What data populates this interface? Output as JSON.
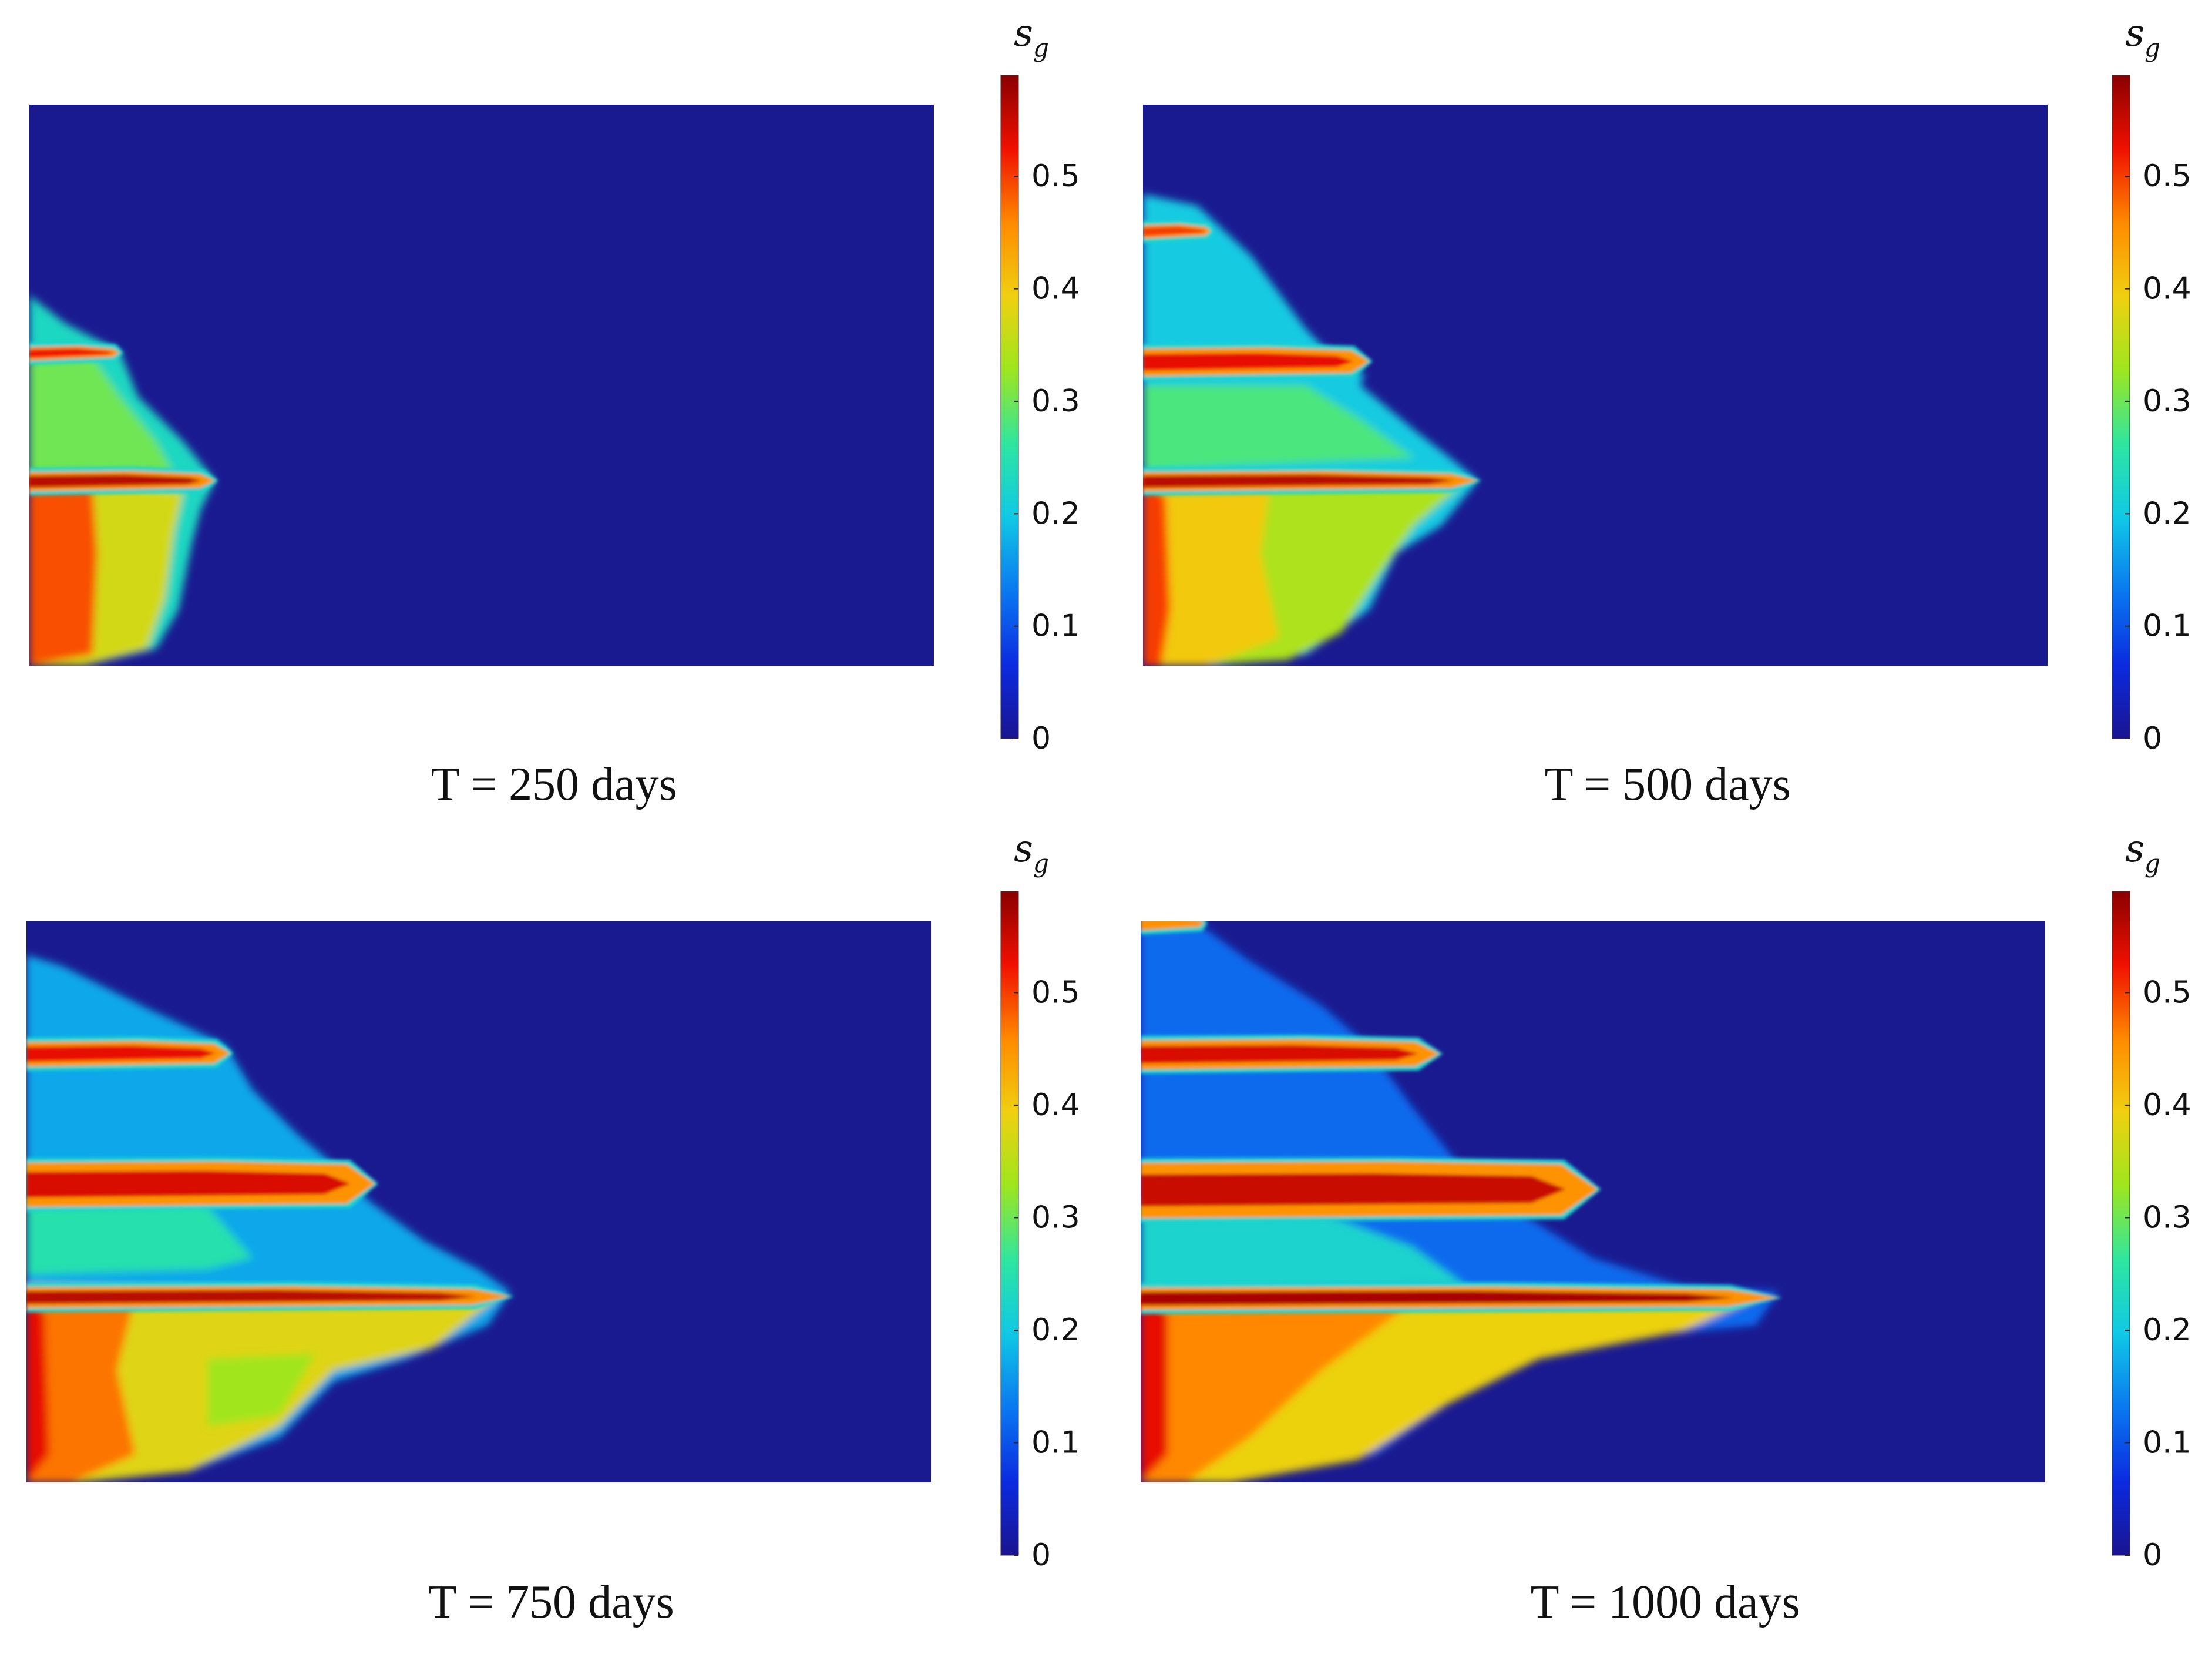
{
  "figure": {
    "colormap": [
      "#1a1490",
      "#0b2ae0",
      "#0a78f0",
      "#10c8e6",
      "#2ee6a0",
      "#9ee61e",
      "#f0d010",
      "#ff8a00",
      "#f01000",
      "#8a0000"
    ],
    "background_color": "#1a1a90",
    "colorbar_tick_labels": [
      "0",
      "0.1",
      "0.2",
      "0.3",
      "0.4",
      "0.5"
    ],
    "colorbar_title": {
      "main": "s",
      "sub": "g"
    }
  },
  "panels": [
    {
      "caption": "T = 250 days"
    },
    {
      "caption": "T = 500 days"
    },
    {
      "caption": "T = 750 days"
    },
    {
      "caption": "T = 1000 days"
    }
  ],
  "chart_data": [
    {
      "type": "heatmap",
      "title": "T = 250 days",
      "variable": "s_g",
      "colorbar": {
        "min": 0,
        "max": 0.59,
        "ticks": [
          0,
          0.1,
          0.2,
          0.3,
          0.4,
          0.5
        ]
      },
      "plumes": [
        {
          "reach": 0.205,
          "peak_sg": 0.55
        },
        {
          "reach": 0.1,
          "peak_sg": 0.5
        }
      ]
    },
    {
      "type": "heatmap",
      "title": "T = 500 days",
      "variable": "s_g",
      "colorbar": {
        "min": 0,
        "max": 0.59,
        "ticks": [
          0,
          0.1,
          0.2,
          0.3,
          0.4,
          0.5
        ]
      },
      "plumes": [
        {
          "reach": 0.37,
          "peak_sg": 0.55
        },
        {
          "reach": 0.25,
          "peak_sg": 0.52
        },
        {
          "reach": 0.07,
          "peak_sg": 0.5
        }
      ]
    },
    {
      "type": "heatmap",
      "title": "T = 750 days",
      "variable": "s_g",
      "colorbar": {
        "min": 0,
        "max": 0.59,
        "ticks": [
          0,
          0.1,
          0.2,
          0.3,
          0.4,
          0.5
        ]
      },
      "plumes": [
        {
          "reach": 0.535,
          "peak_sg": 0.56
        },
        {
          "reach": 0.385,
          "peak_sg": 0.55
        },
        {
          "reach": 0.225,
          "peak_sg": 0.52
        }
      ]
    },
    {
      "type": "heatmap",
      "title": "T = 1000 days",
      "variable": "s_g",
      "colorbar": {
        "min": 0,
        "max": 0.59,
        "ticks": [
          0,
          0.1,
          0.2,
          0.3,
          0.4,
          0.5
        ]
      },
      "plumes": [
        {
          "reach": 0.705,
          "peak_sg": 0.56
        },
        {
          "reach": 0.505,
          "peak_sg": 0.55
        },
        {
          "reach": 0.33,
          "peak_sg": 0.53
        },
        {
          "reach": 0.07,
          "peak_sg": 0.45
        }
      ]
    }
  ]
}
